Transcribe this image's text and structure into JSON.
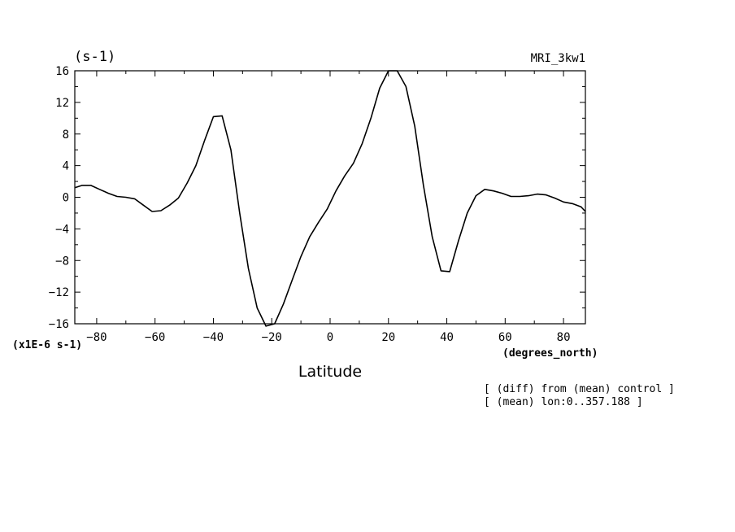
{
  "chart_data": {
    "type": "line",
    "title_left": "(s-1)",
    "title_right": "MRI_3kw1",
    "xlabel": "Latitude",
    "x_unit_label": "(degrees_north)",
    "y_scale_label": "(x1E-6 s-1)",
    "annotations": [
      "[ (diff) from (mean) control ]",
      "[ (mean) lon:0..357.188 ]"
    ],
    "xlim": [
      -87.5,
      87.5
    ],
    "ylim": [
      -16,
      16
    ],
    "x_ticks": [
      -80,
      -60,
      -40,
      -20,
      0,
      20,
      40,
      60,
      80
    ],
    "y_ticks": [
      16,
      12,
      8,
      4,
      0,
      -4,
      -8,
      -12,
      -16
    ],
    "grid": false,
    "series": [
      {
        "color": "#000000",
        "x": [
          -87.5,
          -85,
          -82,
          -79,
          -76,
          -73,
          -70,
          -67,
          -64,
          -61,
          -58,
          -55,
          -52,
          -49,
          -46,
          -43,
          -40,
          -37,
          -34,
          -31,
          -28,
          -25,
          -22,
          -19,
          -16,
          -13,
          -10,
          -7,
          -4,
          -1,
          2,
          5,
          8,
          11,
          14,
          17,
          20,
          23,
          26,
          29,
          32,
          35,
          38,
          41,
          44,
          47,
          50,
          53,
          56,
          59,
          62,
          65,
          68,
          71,
          74,
          77,
          80,
          83,
          86,
          87.5
        ],
        "y": [
          1.2,
          1.5,
          1.5,
          1.0,
          0.5,
          0.1,
          0.0,
          -0.2,
          -1.0,
          -1.8,
          -1.7,
          -1.0,
          -0.1,
          1.8,
          4.0,
          7.2,
          10.2,
          10.3,
          6.0,
          -2.0,
          -9.0,
          -14.0,
          -16.3,
          -16.0,
          -13.5,
          -10.5,
          -7.5,
          -5.0,
          -3.2,
          -1.5,
          0.8,
          2.7,
          4.3,
          6.8,
          10.0,
          13.8,
          16.0,
          16.0,
          14.0,
          9.0,
          1.5,
          -5.0,
          -9.3,
          -9.4,
          -5.5,
          -2.0,
          0.2,
          1.0,
          0.8,
          0.5,
          0.1,
          0.1,
          0.2,
          0.4,
          0.3,
          -0.1,
          -0.6,
          -0.8,
          -1.2,
          -1.8
        ]
      }
    ]
  }
}
